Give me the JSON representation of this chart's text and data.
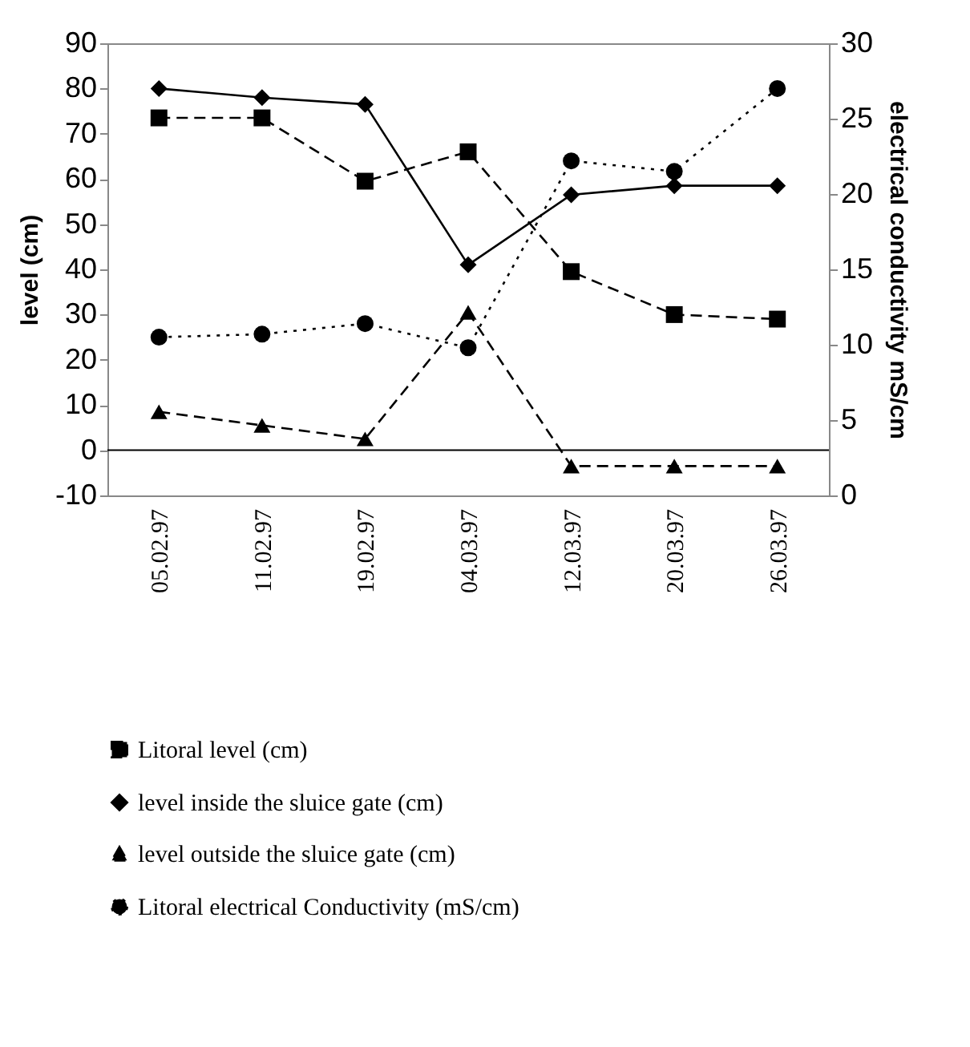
{
  "chart_data": {
    "type": "line",
    "ylabel": "level (cm)",
    "y2label": "electrical conductivity mS/cm",
    "categories": [
      "05.02.97",
      "11.02.97",
      "19.02.97",
      "04.03.97",
      "12.03.97",
      "20.03.97",
      "26.03.97"
    ],
    "series": [
      {
        "name": "Litoral level (cm)",
        "color": "#000000",
        "marker": "square",
        "line_style": "dashed",
        "values": [
          73.5,
          73.5,
          59.5,
          66,
          39.5,
          30,
          29
        ]
      },
      {
        "name": "level inside the sluice gate (cm)",
        "color": "#000000",
        "marker": "diamond",
        "line_style": "solid",
        "values": [
          80,
          78,
          76.5,
          41,
          56.5,
          58.5,
          58.5
        ]
      },
      {
        "name": "level outside the sluice gate (cm)",
        "color": "#000000",
        "marker": "triangle",
        "line_style": "dashed",
        "values": [
          8.5,
          5.5,
          2.5,
          30.5,
          -3.5,
          -3.5,
          -3.5
        ]
      },
      {
        "name": "Litoral electrical Conductivity (mS/cm)",
        "color": "#000000",
        "marker": "circle",
        "line_style": "dotted",
        "axis": "y2",
        "values": [
          10.5,
          10.7,
          11.4,
          9.8,
          22.2,
          21.5,
          27
        ]
      }
    ],
    "ylim": [
      -10,
      90
    ],
    "yticks": [
      -10,
      0,
      10,
      20,
      30,
      40,
      50,
      60,
      70,
      80,
      90
    ],
    "y2lim": [
      0,
      30
    ],
    "y2ticks": [
      0,
      5,
      10,
      15,
      20,
      25,
      30
    ],
    "ref_lines": [
      {
        "axis": "y",
        "value": 0
      }
    ],
    "legend": "bottom",
    "grid": false
  }
}
